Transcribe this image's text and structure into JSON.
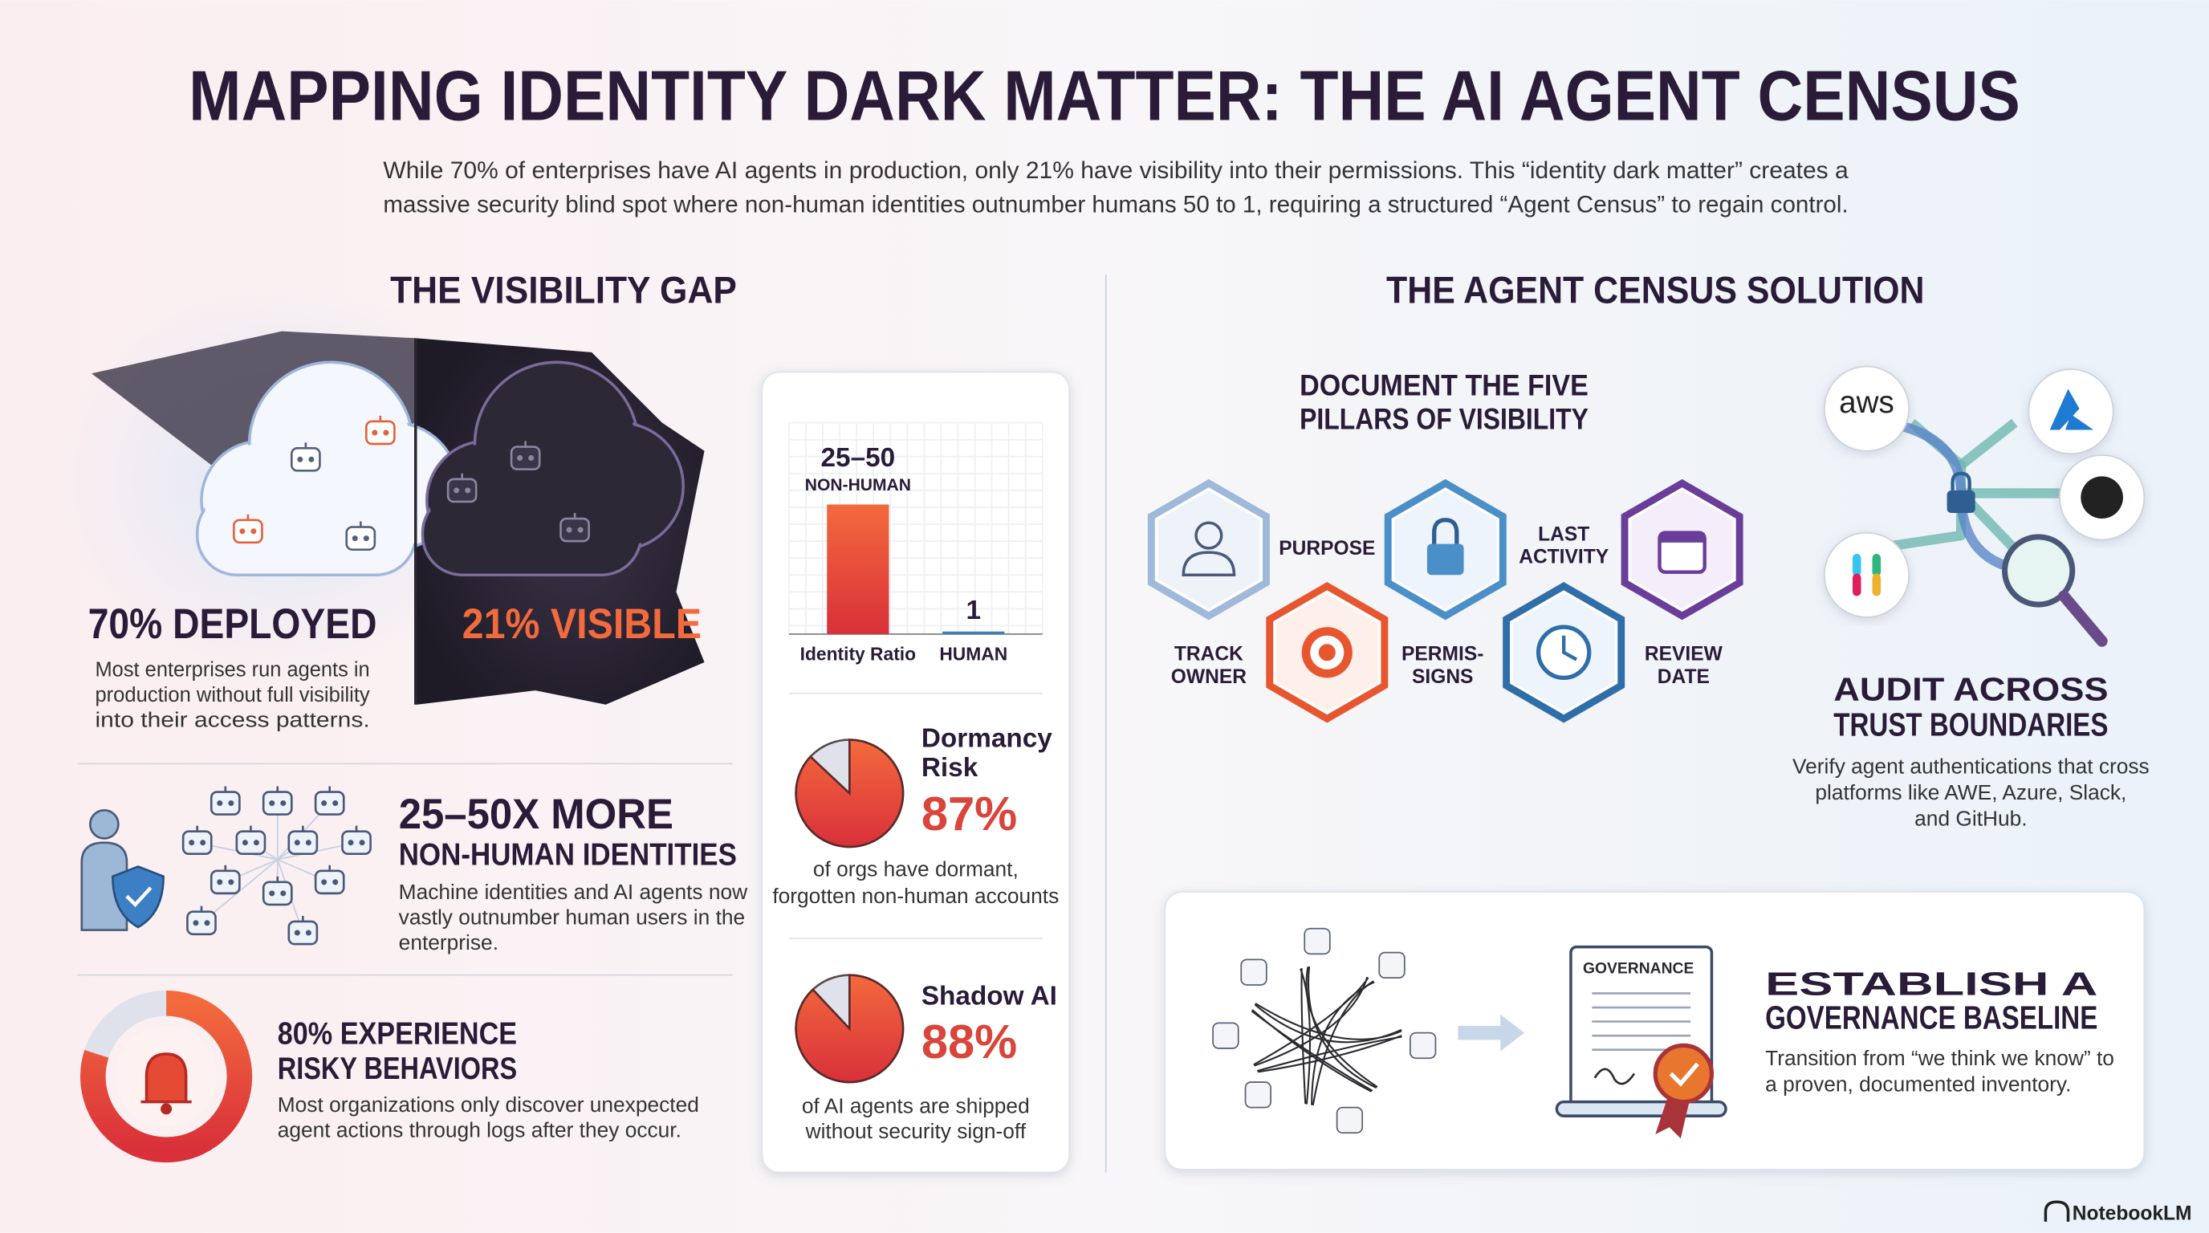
{
  "header": {
    "title": "MAPPING IDENTITY DARK MATTER: THE AI AGENT CENSUS",
    "subtitle": [
      "While 70% of enterprises have AI agents in production, only 21% have visibility into their permissions. This “identity dark matter” creates a",
      "massive security blind spot where non-human identities outnumber humans 50 to 1, requiring a structured “Agent Census” to regain control."
    ]
  },
  "visibility_gap": {
    "heading": "THE VISIBILITY GAP",
    "deployed": {
      "label": "70% DEPLOYED",
      "text": [
        "Most enterprises run agents in",
        "production without full visibility",
        "into their access patterns."
      ]
    },
    "visible": {
      "label": "21% VISIBLE"
    },
    "non_human": {
      "headline": "25–50X MORE",
      "subhead": "NON-HUMAN IDENTITIES",
      "text": [
        "Machine identities and AI agents now",
        "vastly outnumber human users in the",
        "enterprise."
      ]
    },
    "risky": {
      "value": 80,
      "headline": [
        "80% EXPERIENCE",
        "RISKY BEHAVIORS"
      ],
      "text": [
        "Most organizations only discover unexpected",
        "agent actions through logs after they occur."
      ]
    }
  },
  "stats_card": {
    "ratio": {
      "bars": [
        {
          "value": 50,
          "value_label": "25–50",
          "sublabel": "NON-HUMAN",
          "category": "Identity Ratio"
        },
        {
          "value": 1,
          "category": "HUMAN"
        }
      ]
    },
    "dormancy": {
      "title": [
        "Dormancy",
        "Risk"
      ],
      "value": 87,
      "value_label": "87%",
      "text": [
        "of orgs have dormant,",
        "forgotten non-human accounts"
      ]
    },
    "shadow_ai": {
      "title": "Shadow AI",
      "value": 88,
      "value_label": "88%",
      "text": [
        "of AI agents are shipped",
        "without security sign-off"
      ]
    }
  },
  "census": {
    "heading": "THE AGENT CENSUS SOLUTION",
    "pillars": {
      "title": [
        "DOCUMENT THE FIVE",
        "PILLARS OF VISIBILITY"
      ],
      "items": [
        [
          "TRACK",
          "OWNER"
        ],
        [
          "PURPOSE"
        ],
        [
          "PERMIS-",
          "SIGNS"
        ],
        [
          "LAST",
          "ACTIVITY"
        ],
        [
          "REVIEW",
          "DATE"
        ]
      ]
    },
    "audit": {
      "platform": "aws",
      "title": [
        "AUDIT ACROSS",
        "TRUST BOUNDARIES"
      ],
      "text": [
        "Verify agent authentications that cross",
        "platforms like AWE, Azure, Slack,",
        "and GitHub."
      ]
    },
    "baseline": {
      "doc_label": "GOVERNANCE",
      "title": [
        "ESTABLISH A",
        "GOVERNANCE BASELINE"
      ],
      "text": [
        "Transition from “we think we know” to",
        "a proven, documented inventory."
      ]
    }
  },
  "footer": {
    "brand": "NotebookLM"
  }
}
